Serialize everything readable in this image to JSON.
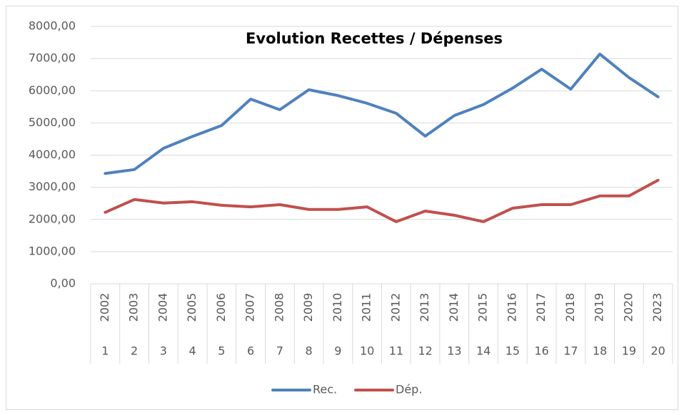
{
  "chart_data": {
    "type": "line",
    "title": "Evolution Recettes / Dépenses",
    "categories": [
      "2002",
      "2003",
      "2004",
      "2005",
      "2006",
      "2007",
      "2008",
      "2009",
      "2010",
      "2011",
      "2012",
      "2013",
      "2014",
      "2015",
      "2016",
      "2017",
      "2018",
      "2019",
      "2020",
      "2023"
    ],
    "category_groups": [
      "1",
      "2",
      "3",
      "4",
      "5",
      "6",
      "7",
      "8",
      "9",
      "10",
      "11",
      "12",
      "13",
      "14",
      "15",
      "16",
      "17",
      "18",
      "19",
      "20"
    ],
    "series": [
      {
        "name": "Rec.",
        "color": "#4f81bd",
        "values": [
          3430,
          3550,
          4210,
          4580,
          4920,
          5740,
          5410,
          6030,
          5850,
          5610,
          5300,
          4590,
          5230,
          5570,
          6080,
          6670,
          6050,
          7140,
          6410,
          5810
        ]
      },
      {
        "name": "Dép.",
        "color": "#c0504d",
        "values": [
          2220,
          2620,
          2510,
          2550,
          2440,
          2390,
          2460,
          2310,
          2310,
          2390,
          1930,
          2260,
          2130,
          1930,
          2350,
          2460,
          2460,
          2730,
          2730,
          3220
        ]
      }
    ],
    "ylim": [
      0,
      8000
    ],
    "yticks": [
      {
        "value": 0,
        "label": "0,00"
      },
      {
        "value": 1000,
        "label": "1000,00"
      },
      {
        "value": 2000,
        "label": "2000,00"
      },
      {
        "value": 3000,
        "label": "3000,00"
      },
      {
        "value": 4000,
        "label": "4000,00"
      },
      {
        "value": 5000,
        "label": "5000,00"
      },
      {
        "value": 6000,
        "label": "6000,00"
      },
      {
        "value": 7000,
        "label": "7000,00"
      },
      {
        "value": 8000,
        "label": "8000,00"
      }
    ],
    "grid": true,
    "legend": "bottom"
  }
}
